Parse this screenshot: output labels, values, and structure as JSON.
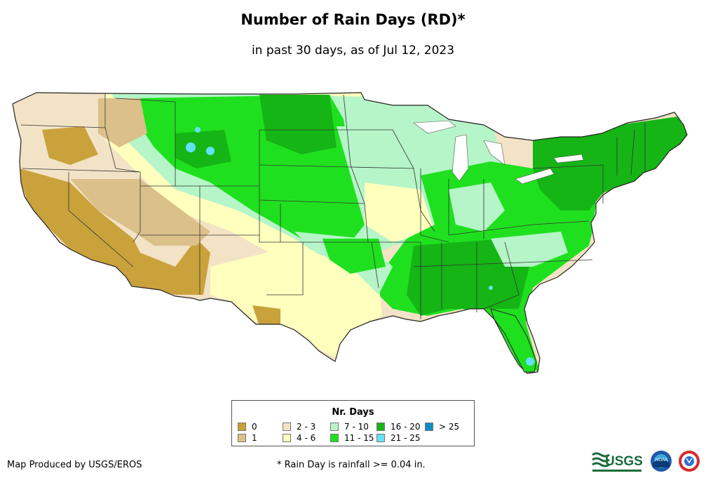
{
  "title": "Number of Rain Days (RD)*",
  "subtitle": "in past 30 days, as of Jul 12, 2023",
  "legend": {
    "title": "Nr. Days",
    "items": [
      {
        "label": "0",
        "color": "#c9a23c"
      },
      {
        "label": "1",
        "color": "#dcc08a"
      },
      {
        "label": "2 - 3",
        "color": "#f3e3c6"
      },
      {
        "label": "4 - 6",
        "color": "#ffffbe"
      },
      {
        "label": "7 - 10",
        "color": "#b5f5c8"
      },
      {
        "label": "11 - 15",
        "color": "#1fe01f"
      },
      {
        "label": "16 - 20",
        "color": "#15b515"
      },
      {
        "label": "21 - 25",
        "color": "#62e2f5"
      },
      {
        "label": "> 25",
        "color": "#0f8bc4"
      }
    ]
  },
  "footer": {
    "producer": "Map Produced by USGS/EROS",
    "note": "* Rain Day is rainfall >= 0.04 in."
  },
  "logos": {
    "usgs_text": "USGS",
    "noaa_text": "NOAA"
  }
}
